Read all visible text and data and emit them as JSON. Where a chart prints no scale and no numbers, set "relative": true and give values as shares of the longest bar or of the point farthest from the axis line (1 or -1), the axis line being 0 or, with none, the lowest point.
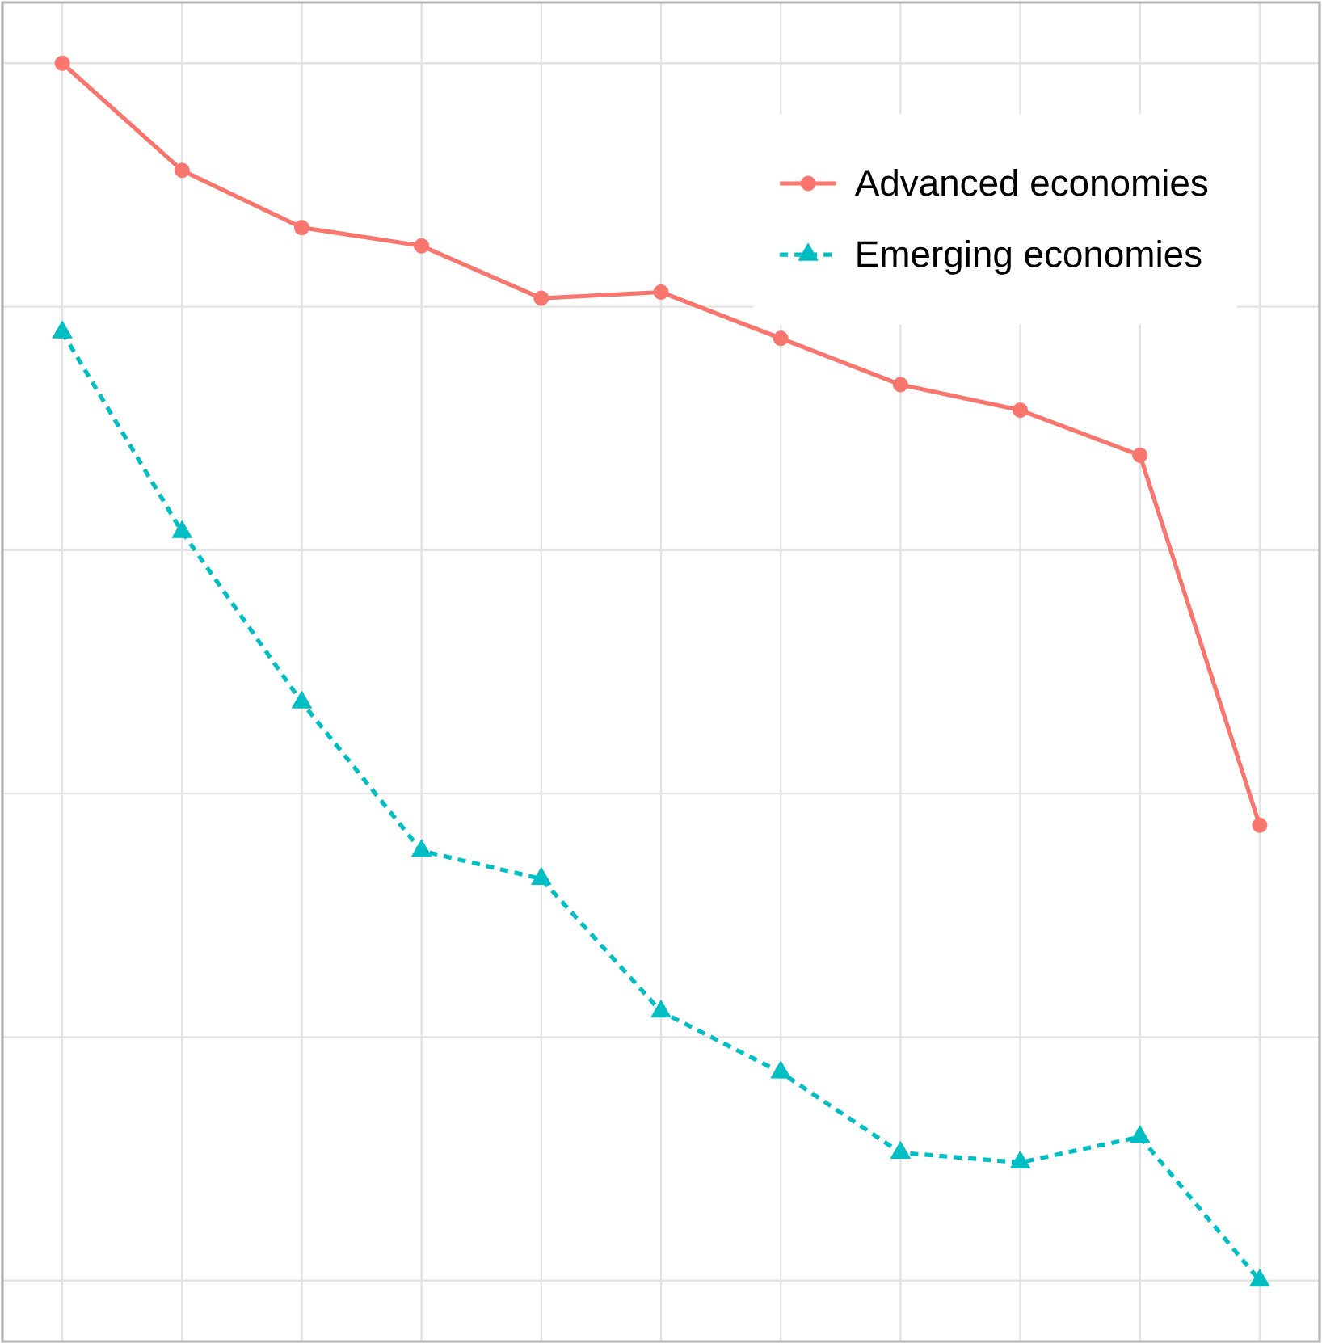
{
  "chart_data": {
    "type": "line",
    "relative": true,
    "categories": [
      null,
      null,
      null,
      null,
      null,
      null,
      null,
      null,
      null,
      null,
      null
    ],
    "series": [
      {
        "name": "Advanced economies",
        "color": "#f8766d",
        "marker": "circle",
        "line_style": "solid",
        "values": [
          1,
          0.912,
          0.865,
          0.85,
          0.807,
          0.812,
          0.774,
          0.736,
          0.715,
          0.678,
          0.374
        ]
      },
      {
        "name": "Emerging economies",
        "color": "#00bfc4",
        "marker": "triangle",
        "line_style": "dashed",
        "values": [
          0.779,
          0.615,
          0.475,
          0.353,
          0.33,
          0.221,
          0.171,
          0.105,
          0.097,
          0.118,
          0
        ]
      }
    ],
    "grid": true,
    "legend": "top right"
  }
}
